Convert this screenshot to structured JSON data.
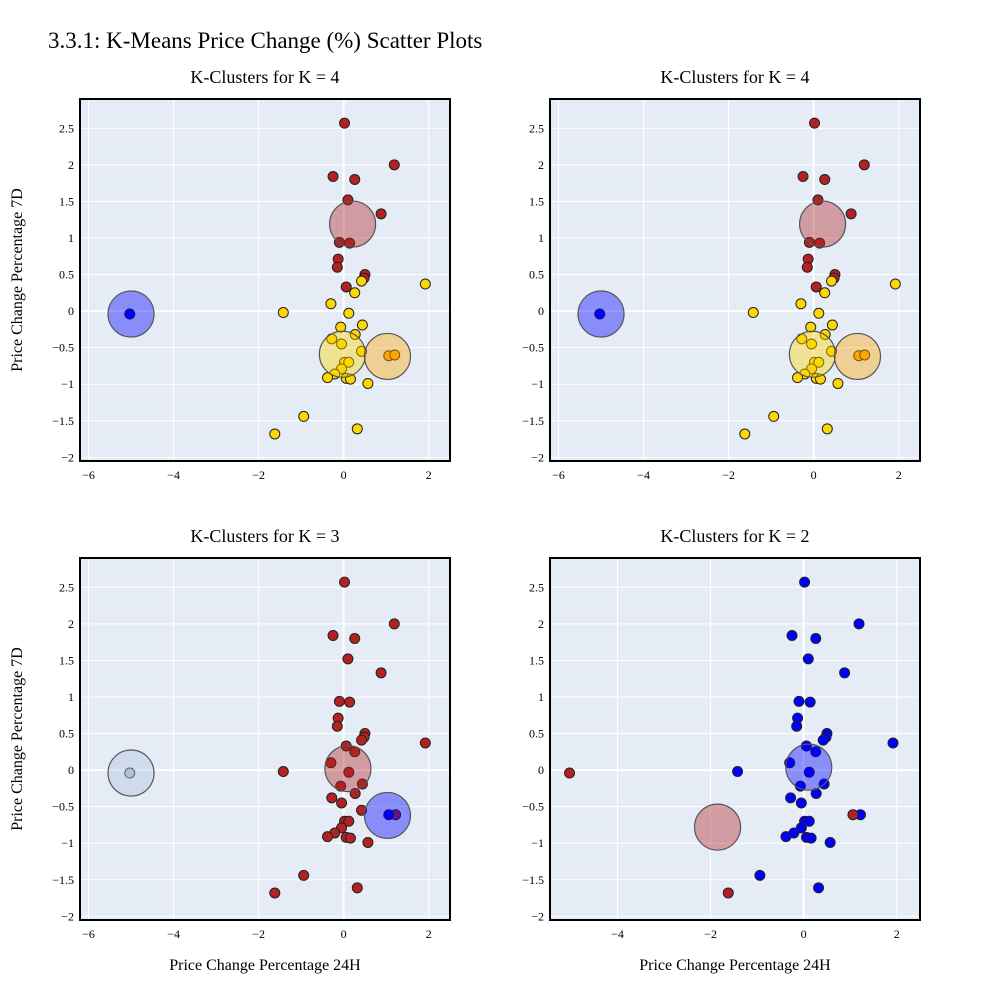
{
  "title": "3.3.1: K-Means Price Change (%) Scatter Plots",
  "colors": {
    "plot_bg": "#e5ecf6",
    "grid": "#ffffff",
    "red": "#b22222",
    "yellow": "#ffd700",
    "orange": "#ffa500",
    "blue": "#0000ff",
    "lightblue": "#b0c4de"
  },
  "chart_data": [
    {
      "type": "scatter",
      "title": "K-Clusters for K = 4",
      "xlabel": "",
      "ylabel": "Price Change Percentage 7D",
      "xlim": [
        -6.2,
        2.5
      ],
      "ylim": [
        -2.05,
        2.9
      ],
      "xticks": [
        -6,
        -4,
        -2,
        0,
        2
      ],
      "yticks": [
        -2,
        -1.5,
        -1,
        -0.5,
        0,
        0.5,
        1,
        1.5,
        2,
        2.5
      ],
      "series": [
        {
          "color": "#b22222",
          "points": [
            [
              0.02,
              2.57
            ],
            [
              1.19,
              2.0
            ],
            [
              -0.25,
              1.84
            ],
            [
              0.26,
              1.8
            ],
            [
              0.1,
              1.52
            ],
            [
              0.88,
              1.33
            ],
            [
              -0.1,
              0.94
            ],
            [
              0.14,
              0.93
            ],
            [
              -0.13,
              0.71
            ],
            [
              -0.15,
              0.6
            ],
            [
              0.5,
              0.5
            ],
            [
              0.48,
              0.45
            ],
            [
              0.06,
              0.33
            ]
          ]
        },
        {
          "color": "#ffd700",
          "points": [
            [
              0.42,
              0.41
            ],
            [
              1.92,
              0.37
            ],
            [
              0.26,
              0.25
            ],
            [
              -0.3,
              0.1
            ],
            [
              -1.42,
              -0.02
            ],
            [
              0.12,
              -0.03
            ],
            [
              0.44,
              -0.19
            ],
            [
              -0.07,
              -0.22
            ],
            [
              0.27,
              -0.32
            ],
            [
              -0.28,
              -0.38
            ],
            [
              -0.05,
              -0.45
            ],
            [
              0.42,
              -0.55
            ],
            [
              0.02,
              -0.7
            ],
            [
              0.12,
              -0.7
            ],
            [
              -0.05,
              -0.79
            ],
            [
              -0.21,
              -0.86
            ],
            [
              -0.38,
              -0.91
            ],
            [
              0.06,
              -0.92
            ],
            [
              0.16,
              -0.93
            ],
            [
              0.57,
              -0.99
            ],
            [
              -0.94,
              -1.44
            ],
            [
              0.32,
              -1.61
            ],
            [
              -1.62,
              -1.68
            ]
          ]
        },
        {
          "color": "#ffa500",
          "points": [
            [
              1.06,
              -0.61
            ],
            [
              1.2,
              -0.6
            ]
          ]
        },
        {
          "color": "#0000ff",
          "points": [
            [
              -5.03,
              -0.04
            ]
          ]
        }
      ],
      "centroids": [
        {
          "x": 0.21,
          "y": 1.19,
          "color": "#b22222"
        },
        {
          "x": -0.03,
          "y": -0.59,
          "color": "#ffd700"
        },
        {
          "x": 1.03,
          "y": -0.62,
          "color": "#ffa500"
        },
        {
          "x": -5.0,
          "y": -0.04,
          "color": "#0000ff"
        }
      ]
    },
    {
      "type": "scatter",
      "title": "K-Clusters for K = 4",
      "xlabel": "",
      "ylabel": "",
      "xlim": [
        -6.2,
        2.5
      ],
      "ylim": [
        -2.05,
        2.9
      ],
      "xticks": [
        -6,
        -4,
        -2,
        0,
        2
      ],
      "yticks": [
        -2,
        -1.5,
        -1,
        -0.5,
        0,
        0.5,
        1,
        1.5,
        2,
        2.5
      ],
      "series": [
        {
          "color": "#b22222",
          "points": [
            [
              0.02,
              2.57
            ],
            [
              1.19,
              2.0
            ],
            [
              -0.25,
              1.84
            ],
            [
              0.26,
              1.8
            ],
            [
              0.1,
              1.52
            ],
            [
              0.88,
              1.33
            ],
            [
              -0.1,
              0.94
            ],
            [
              0.14,
              0.93
            ],
            [
              -0.13,
              0.71
            ],
            [
              -0.15,
              0.6
            ],
            [
              0.5,
              0.5
            ],
            [
              0.48,
              0.45
            ],
            [
              0.06,
              0.33
            ]
          ]
        },
        {
          "color": "#ffd700",
          "points": [
            [
              0.42,
              0.41
            ],
            [
              1.92,
              0.37
            ],
            [
              0.26,
              0.25
            ],
            [
              -0.3,
              0.1
            ],
            [
              -1.42,
              -0.02
            ],
            [
              0.12,
              -0.03
            ],
            [
              0.44,
              -0.19
            ],
            [
              -0.07,
              -0.22
            ],
            [
              0.27,
              -0.32
            ],
            [
              -0.28,
              -0.38
            ],
            [
              -0.05,
              -0.45
            ],
            [
              0.42,
              -0.55
            ],
            [
              0.02,
              -0.7
            ],
            [
              0.12,
              -0.7
            ],
            [
              -0.05,
              -0.79
            ],
            [
              -0.21,
              -0.86
            ],
            [
              -0.38,
              -0.91
            ],
            [
              0.06,
              -0.92
            ],
            [
              0.16,
              -0.93
            ],
            [
              0.57,
              -0.99
            ],
            [
              -0.94,
              -1.44
            ],
            [
              0.32,
              -1.61
            ],
            [
              -1.62,
              -1.68
            ]
          ]
        },
        {
          "color": "#ffa500",
          "points": [
            [
              1.06,
              -0.61
            ],
            [
              1.2,
              -0.6
            ]
          ]
        },
        {
          "color": "#0000ff",
          "points": [
            [
              -5.03,
              -0.04
            ]
          ]
        }
      ],
      "centroids": [
        {
          "x": 0.21,
          "y": 1.19,
          "color": "#b22222"
        },
        {
          "x": -0.03,
          "y": -0.59,
          "color": "#ffd700"
        },
        {
          "x": 1.03,
          "y": -0.62,
          "color": "#ffa500"
        },
        {
          "x": -5.0,
          "y": -0.04,
          "color": "#0000ff"
        }
      ]
    },
    {
      "type": "scatter",
      "title": "K-Clusters for K = 3",
      "xlabel": "Price Change Percentage 24H",
      "ylabel": "Price Change Percentage 7D",
      "xlim": [
        -6.2,
        2.5
      ],
      "ylim": [
        -2.05,
        2.9
      ],
      "xticks": [
        -6,
        -4,
        -2,
        0,
        2
      ],
      "yticks": [
        -2,
        -1.5,
        -1,
        -0.5,
        0,
        0.5,
        1,
        1.5,
        2,
        2.5
      ],
      "series": [
        {
          "color": "#b22222",
          "points": [
            [
              0.02,
              2.57
            ],
            [
              1.19,
              2.0
            ],
            [
              -0.25,
              1.84
            ],
            [
              0.26,
              1.8
            ],
            [
              0.1,
              1.52
            ],
            [
              0.88,
              1.33
            ],
            [
              -0.1,
              0.94
            ],
            [
              0.14,
              0.93
            ],
            [
              -0.13,
              0.71
            ],
            [
              -0.15,
              0.6
            ],
            [
              0.5,
              0.5
            ],
            [
              0.48,
              0.45
            ],
            [
              0.42,
              0.41
            ],
            [
              1.92,
              0.37
            ],
            [
              0.06,
              0.33
            ],
            [
              0.26,
              0.25
            ],
            [
              -0.3,
              0.1
            ],
            [
              -1.42,
              -0.02
            ],
            [
              0.12,
              -0.03
            ],
            [
              0.44,
              -0.19
            ],
            [
              -0.07,
              -0.22
            ],
            [
              0.27,
              -0.32
            ],
            [
              -0.28,
              -0.38
            ],
            [
              -0.05,
              -0.45
            ],
            [
              0.42,
              -0.55
            ],
            [
              0.02,
              -0.7
            ],
            [
              0.12,
              -0.7
            ],
            [
              -0.05,
              -0.79
            ],
            [
              -0.21,
              -0.86
            ],
            [
              -0.38,
              -0.91
            ],
            [
              0.06,
              -0.92
            ],
            [
              0.16,
              -0.93
            ],
            [
              0.57,
              -0.99
            ],
            [
              -0.94,
              -1.44
            ],
            [
              0.32,
              -1.61
            ],
            [
              -1.62,
              -1.68
            ],
            [
              1.22,
              -0.61
            ]
          ]
        },
        {
          "color": "#0000ff",
          "points": [
            [
              1.06,
              -0.61
            ]
          ]
        },
        {
          "color": "#b0c4de",
          "points": [
            [
              -5.03,
              -0.04
            ]
          ]
        }
      ],
      "centroids": [
        {
          "x": 0.1,
          "y": 0.02,
          "color": "#b22222"
        },
        {
          "x": 1.03,
          "y": -0.62,
          "color": "#0000ff"
        },
        {
          "x": -5.0,
          "y": -0.04,
          "color": "#b0c4de"
        }
      ]
    },
    {
      "type": "scatter",
      "title": "K-Clusters for K = 2",
      "xlabel": "Price Change Percentage 24H",
      "ylabel": "",
      "xlim": [
        -5.45,
        2.5
      ],
      "ylim": [
        -2.05,
        2.9
      ],
      "xticks": [
        -4,
        -2,
        0,
        2
      ],
      "yticks": [
        -2,
        -1.5,
        -1,
        -0.5,
        0,
        0.5,
        1,
        1.5,
        2,
        2.5
      ],
      "series": [
        {
          "color": "#0000ff",
          "points": [
            [
              0.02,
              2.57
            ],
            [
              1.19,
              2.0
            ],
            [
              -0.25,
              1.84
            ],
            [
              0.26,
              1.8
            ],
            [
              0.1,
              1.52
            ],
            [
              0.88,
              1.33
            ],
            [
              -0.1,
              0.94
            ],
            [
              0.14,
              0.93
            ],
            [
              -0.13,
              0.71
            ],
            [
              -0.15,
              0.6
            ],
            [
              0.5,
              0.5
            ],
            [
              0.48,
              0.45
            ],
            [
              0.42,
              0.41
            ],
            [
              1.92,
              0.37
            ],
            [
              0.06,
              0.33
            ],
            [
              0.26,
              0.25
            ],
            [
              -0.3,
              0.1
            ],
            [
              -1.42,
              -0.02
            ],
            [
              0.12,
              -0.03
            ],
            [
              0.44,
              -0.19
            ],
            [
              -0.07,
              -0.22
            ],
            [
              0.27,
              -0.32
            ],
            [
              -0.28,
              -0.38
            ],
            [
              -0.05,
              -0.45
            ],
            [
              1.22,
              -0.61
            ],
            [
              0.02,
              -0.7
            ],
            [
              0.12,
              -0.7
            ],
            [
              -0.05,
              -0.79
            ],
            [
              -0.21,
              -0.86
            ],
            [
              -0.38,
              -0.91
            ],
            [
              0.06,
              -0.92
            ],
            [
              0.16,
              -0.93
            ],
            [
              0.57,
              -0.99
            ],
            [
              -0.94,
              -1.44
            ],
            [
              0.32,
              -1.61
            ]
          ]
        },
        {
          "color": "#b22222",
          "points": [
            [
              -5.03,
              -0.04
            ],
            [
              1.06,
              -0.61
            ],
            [
              -1.62,
              -1.68
            ]
          ]
        }
      ],
      "centroids": [
        {
          "x": 0.11,
          "y": 0.04,
          "color": "#0000ff"
        },
        {
          "x": -1.85,
          "y": -0.78,
          "color": "#b22222"
        }
      ]
    }
  ]
}
